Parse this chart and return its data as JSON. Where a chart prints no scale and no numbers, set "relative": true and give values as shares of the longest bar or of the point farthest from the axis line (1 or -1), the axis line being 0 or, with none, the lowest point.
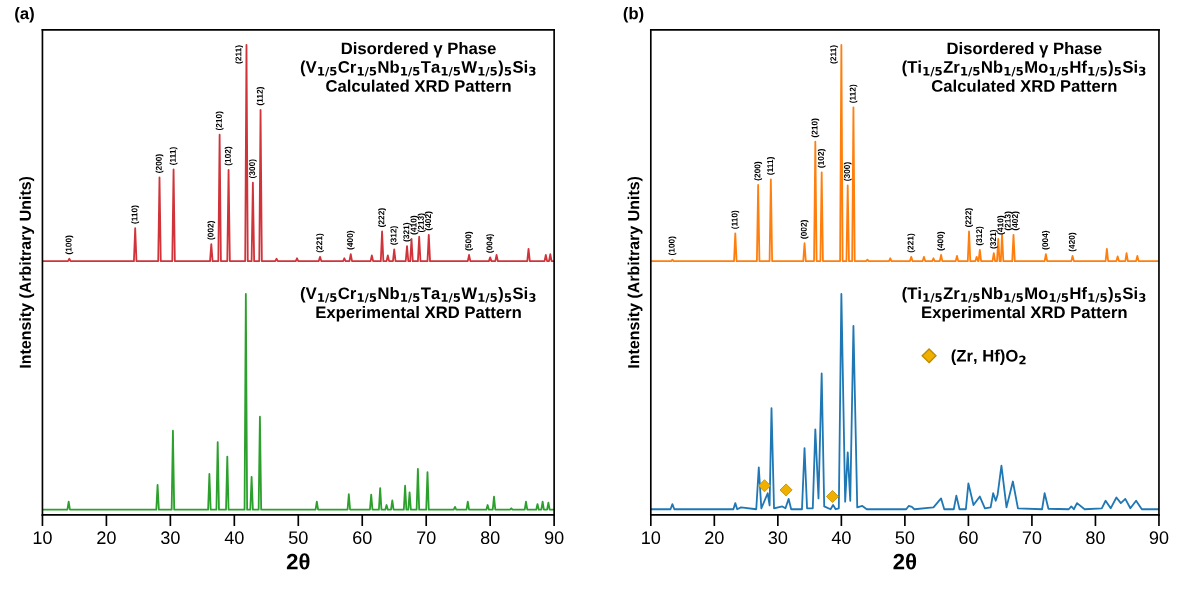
{
  "chart_data": [
    {
      "type": "line",
      "title": "(a)",
      "xlabel": "2θ",
      "ylabel": "Intensity (Arbitrary Units)",
      "relative": true,
      "xlim": [
        10,
        90
      ],
      "xticks": [
        10,
        20,
        30,
        40,
        50,
        60,
        70,
        80,
        90
      ],
      "tick_labels": "x",
      "grid": false,
      "legend": false,
      "series": [
        {
          "color": "#d0343a",
          "x": [
            10,
            14.0,
            14.2,
            14.4,
            24.3,
            24.5,
            24.7,
            28.1,
            28.3,
            28.5,
            30.3,
            30.5,
            30.7,
            36.2,
            36.4,
            36.6,
            37.5,
            37.7,
            37.9,
            38.9,
            39.1,
            39.3,
            41.7,
            41.9,
            42.1,
            42.7,
            42.9,
            43.1,
            43.9,
            44.1,
            44.3,
            46.4,
            46.6,
            46.8,
            49.6,
            49.8,
            50.0,
            53.2,
            53.4,
            53.6,
            57.0,
            57.2,
            57.4,
            58.0,
            58.2,
            58.4,
            61.3,
            61.5,
            61.7,
            62.9,
            63.1,
            63.3,
            63.8,
            64.0,
            64.2,
            64.8,
            65.0,
            65.2,
            66.8,
            67.0,
            67.2,
            67.5,
            67.7,
            67.9,
            68.7,
            68.9,
            69.1,
            70.2,
            70.4,
            70.6,
            76.5,
            76.7,
            76.9,
            79.8,
            80.0,
            80.2,
            80.8,
            81.0,
            81.2,
            85.8,
            86.0,
            86.2,
            88.5,
            88.7,
            88.9,
            89.2,
            89.4,
            89.6,
            90
          ],
          "values": [
            0.54,
            0.54,
            0.545,
            0.54,
            0.54,
            0.61,
            0.54,
            0.54,
            0.718,
            0.54,
            0.54,
            0.735,
            0.54,
            0.54,
            0.576,
            0.54,
            0.54,
            0.809,
            0.54,
            0.54,
            0.734,
            0.54,
            0.54,
            1.0,
            0.54,
            0.54,
            0.707,
            0.54,
            0.54,
            0.862,
            0.54,
            0.54,
            0.545,
            0.54,
            0.54,
            0.546,
            0.54,
            0.54,
            0.549,
            0.54,
            0.54,
            0.546,
            0.54,
            0.54,
            0.555,
            0.54,
            0.54,
            0.552,
            0.54,
            0.54,
            0.603,
            0.54,
            0.54,
            0.552,
            0.54,
            0.54,
            0.565,
            0.54,
            0.54,
            0.572,
            0.54,
            0.54,
            0.587,
            0.54,
            0.54,
            0.592,
            0.54,
            0.54,
            0.596,
            0.54,
            0.54,
            0.553,
            0.54,
            0.54,
            0.548,
            0.54,
            0.54,
            0.553,
            0.54,
            0.54,
            0.566,
            0.54,
            0.54,
            0.553,
            0.54,
            0.54,
            0.555,
            0.54,
            0.54
          ]
        },
        {
          "color": "#2ca02c",
          "x": [
            10,
            13.9,
            14.1,
            14.3,
            27.8,
            28.0,
            28.2,
            30.2,
            30.4,
            30.6,
            35.9,
            36.1,
            36.3,
            37.2,
            37.4,
            37.6,
            38.7,
            38.9,
            39.1,
            41.6,
            41.8,
            42.0,
            42.5,
            42.7,
            42.9,
            43.8,
            44.0,
            44.2,
            52.7,
            52.9,
            53.1,
            57.7,
            57.9,
            58.1,
            61.2,
            61.4,
            61.6,
            62.6,
            62.8,
            63.0,
            63.6,
            63.8,
            64.0,
            64.5,
            64.7,
            64.9,
            66.5,
            66.7,
            66.9,
            67.2,
            67.4,
            67.6,
            68.5,
            68.7,
            68.9,
            70.0,
            70.2,
            70.4,
            74.3,
            74.5,
            74.7,
            76.3,
            76.5,
            76.7,
            79.4,
            79.6,
            79.8,
            80.4,
            80.6,
            80.8,
            83.1,
            83.3,
            83.5,
            85.4,
            85.6,
            85.8,
            87.2,
            87.4,
            87.6,
            88.0,
            88.2,
            88.4,
            88.9,
            89.1,
            89.3,
            90
          ],
          "values": [
            0.011,
            0.011,
            0.028,
            0.011,
            0.011,
            0.064,
            0.011,
            0.011,
            0.179,
            0.011,
            0.011,
            0.087,
            0.011,
            0.011,
            0.155,
            0.011,
            0.011,
            0.124,
            0.011,
            0.011,
            0.47,
            0.011,
            0.011,
            0.081,
            0.011,
            0.011,
            0.209,
            0.011,
            0.011,
            0.028,
            0.011,
            0.011,
            0.044,
            0.011,
            0.011,
            0.043,
            0.011,
            0.011,
            0.057,
            0.011,
            0.011,
            0.021,
            0.011,
            0.011,
            0.031,
            0.011,
            0.011,
            0.062,
            0.011,
            0.011,
            0.048,
            0.011,
            0.011,
            0.098,
            0.011,
            0.011,
            0.091,
            0.011,
            0.011,
            0.017,
            0.011,
            0.011,
            0.028,
            0.011,
            0.011,
            0.021,
            0.011,
            0.011,
            0.039,
            0.011,
            0.011,
            0.014,
            0.011,
            0.011,
            0.028,
            0.011,
            0.011,
            0.023,
            0.011,
            0.011,
            0.028,
            0.011,
            0.011,
            0.026,
            0.011,
            0.011
          ]
        }
      ],
      "annotations": [
        "Disordered γ Phase\n(V$_{1/5}$Cr$_{1/5}$Nb$_{1/5}$Ta$_{1/5}$W$_{1/5}$)$_{5}$Si$_{3}$\nCalculated XRD Pattern",
        "(V$_{1/5}$Cr$_{1/5}$Nb$_{1/5}$Ta$_{1/5}$W$_{1/5}$)$_{5}$Si$_{3}$\nExperimental XRD Pattern",
        {
          "text": "(100)",
          "x": 14.2,
          "y": 0.545
        },
        {
          "text": "(110)",
          "x": 24.5,
          "y": 0.61
        },
        {
          "text": "(200)",
          "x": 28.3,
          "y": 0.718
        },
        {
          "text": "(111)",
          "x": 30.5,
          "y": 0.735
        },
        {
          "text": "(002)",
          "x": 36.4,
          "y": 0.576
        },
        {
          "text": "(210)",
          "x": 37.7,
          "y": 0.809
        },
        {
          "text": "(102)",
          "x": 39.1,
          "y": 0.734
        },
        {
          "text": "(211)",
          "x": 41.9,
          "y": 1.0
        },
        {
          "text": "(300)",
          "x": 42.9,
          "y": 0.707
        },
        {
          "text": "(112)",
          "x": 44.1,
          "y": 0.862
        },
        {
          "text": "(221)",
          "x": 53.4,
          "y": 0.549
        },
        {
          "text": "(400)",
          "x": 58.2,
          "y": 0.555
        },
        {
          "text": "(222)",
          "x": 63.1,
          "y": 0.603
        },
        {
          "text": "(312)",
          "x": 65.0,
          "y": 0.565
        },
        {
          "text": "(321)",
          "x": 67.0,
          "y": 0.572
        },
        {
          "text": "(410)",
          "x": 67.7,
          "y": 0.587
        },
        {
          "text": "(213)",
          "x": 68.9,
          "y": 0.592
        },
        {
          "text": "(402)",
          "x": 70.4,
          "y": 0.596
        },
        {
          "text": "(500)",
          "x": 76.7,
          "y": 0.553
        },
        {
          "text": "(004)",
          "x": 80.0,
          "y": 0.548
        }
      ]
    },
    {
      "type": "line",
      "title": "(b)",
      "xlabel": "2θ",
      "ylabel": "Intensity (Arbitrary Units)",
      "relative": true,
      "xlim": [
        10,
        90
      ],
      "xticks": [
        10,
        20,
        30,
        40,
        50,
        60,
        70,
        80,
        90
      ],
      "tick_labels": "x",
      "grid": false,
      "legend": "right",
      "series": [
        {
          "color": "#ff7f0e",
          "x": [
            10,
            13.2,
            13.4,
            13.6,
            23.1,
            23.3,
            23.5,
            26.7,
            26.9,
            27.1,
            28.7,
            28.9,
            29.1,
            34.0,
            34.2,
            34.4,
            35.7,
            35.9,
            36.1,
            36.7,
            36.9,
            37.1,
            39.8,
            40.0,
            40.2,
            40.8,
            41.0,
            41.2,
            41.7,
            41.9,
            42.1,
            43.9,
            44.1,
            44.3,
            47.5,
            47.7,
            47.9,
            50.8,
            51.0,
            51.2,
            52.8,
            53.0,
            53.2,
            54.3,
            54.5,
            54.7,
            55.5,
            55.7,
            55.9,
            58.0,
            58.2,
            58.4,
            59.9,
            60.1,
            60.3,
            61.1,
            61.3,
            61.5,
            61.6,
            61.8,
            62.0,
            63.8,
            64.0,
            64.2,
            64.5,
            64.7,
            64.9,
            65.1,
            65.3,
            65.5,
            66.9,
            67.1,
            67.3,
            72.0,
            72.2,
            72.4,
            76.2,
            76.4,
            76.6,
            81.6,
            81.8,
            82.0,
            83.3,
            83.5,
            83.7,
            84.7,
            84.9,
            85.1,
            86.4,
            86.6,
            86.8,
            90
          ],
          "values": [
            0.54,
            0.54,
            0.543,
            0.54,
            0.54,
            0.599,
            0.54,
            0.54,
            0.702,
            0.54,
            0.54,
            0.714,
            0.54,
            0.54,
            0.578,
            0.54,
            0.54,
            0.794,
            0.54,
            0.54,
            0.729,
            0.54,
            0.54,
            1.0,
            0.54,
            0.54,
            0.701,
            0.54,
            0.54,
            0.867,
            0.54,
            0.54,
            0.543,
            0.54,
            0.54,
            0.546,
            0.54,
            0.54,
            0.549,
            0.54,
            0.54,
            0.549,
            0.54,
            0.54,
            0.546,
            0.54,
            0.54,
            0.553,
            0.54,
            0.54,
            0.551,
            0.54,
            0.54,
            0.603,
            0.54,
            0.54,
            0.549,
            0.54,
            0.54,
            0.564,
            0.54,
            0.54,
            0.557,
            0.54,
            0.54,
            0.587,
            0.54,
            0.54,
            0.596,
            0.54,
            0.54,
            0.596,
            0.54,
            0.54,
            0.555,
            0.54,
            0.54,
            0.551,
            0.54,
            0.54,
            0.566,
            0.54,
            0.54,
            0.55,
            0.54,
            0.54,
            0.557,
            0.54,
            0.54,
            0.551,
            0.54,
            0.54
          ]
        },
        {
          "color": "#1f77b4",
          "x": [
            10,
            13.1,
            13.4,
            13.7,
            23.0,
            23.3,
            23.6,
            24.2,
            26.6,
            27.0,
            27.4,
            28.4,
            28.7,
            29.0,
            29.4,
            30.7,
            31.2,
            31.7,
            32.1,
            33.8,
            34.2,
            34.6,
            35.5,
            35.9,
            36.4,
            36.9,
            37.3,
            38.3,
            38.7,
            39.1,
            39.6,
            40.0,
            40.6,
            41.0,
            41.4,
            41.9,
            42.5,
            43.3,
            44.0,
            50.2,
            50.6,
            51.1,
            51.5,
            54.5,
            55.7,
            56.2,
            57.7,
            58.1,
            58.6,
            59.6,
            60.0,
            60.8,
            61.8,
            62.6,
            63.5,
            63.9,
            64.3,
            64.6,
            65.2,
            66.0,
            67.0,
            67.8,
            71.6,
            72.0,
            72.6,
            75.8,
            76.2,
            76.6,
            77.1,
            78.3,
            81.0,
            81.6,
            82.4,
            83.3,
            84.0,
            84.7,
            85.5,
            86.4,
            87.3,
            90
          ],
          "values": [
            0.012,
            0.012,
            0.023,
            0.012,
            0.012,
            0.025,
            0.012,
            0.016,
            0.012,
            0.101,
            0.014,
            0.046,
            0.02,
            0.227,
            0.014,
            0.018,
            0.014,
            0.034,
            0.012,
            0.012,
            0.142,
            0.014,
            0.014,
            0.182,
            0.035,
            0.301,
            0.018,
            0.012,
            0.021,
            0.012,
            0.014,
            0.47,
            0.028,
            0.133,
            0.03,
            0.402,
            0.016,
            0.019,
            0.012,
            0.012,
            0.019,
            0.017,
            0.012,
            0.016,
            0.035,
            0.012,
            0.012,
            0.041,
            0.012,
            0.012,
            0.067,
            0.021,
            0.039,
            0.014,
            0.016,
            0.046,
            0.03,
            0.043,
            0.105,
            0.016,
            0.071,
            0.014,
            0.012,
            0.046,
            0.013,
            0.012,
            0.018,
            0.012,
            0.025,
            0.012,
            0.014,
            0.03,
            0.014,
            0.037,
            0.025,
            0.034,
            0.014,
            0.03,
            0.012,
            0.012
          ]
        },
        {
          "type": "scatter",
          "name": "(Zr, Hf)O$_{2}$",
          "color": "#f0b000",
          "marker": "diamond",
          "x": [
            27.9,
            31.3,
            38.6
          ],
          "values": [
            0.062,
            0.053,
            0.039
          ]
        }
      ],
      "annotations": [
        "Disordered γ Phase\n(Ti$_{1/5}$Zr$_{1/5}$Nb$_{1/5}$Mo$_{1/5}$Hf$_{1/5}$)$_{5}$Si$_{3}$\nCalculated XRD Pattern",
        "(Ti$_{1/5}$Zr$_{1/5}$Nb$_{1/5}$Mo$_{1/5}$Hf$_{1/5}$)$_{5}$Si$_{3}$\nExperimental XRD Pattern",
        {
          "text": "(100)",
          "x": 13.4,
          "y": 0.543
        },
        {
          "text": "(110)",
          "x": 23.3,
          "y": 0.599
        },
        {
          "text": "(200)",
          "x": 26.9,
          "y": 0.702
        },
        {
          "text": "(111)",
          "x": 28.9,
          "y": 0.714
        },
        {
          "text": "(002)",
          "x": 34.2,
          "y": 0.578
        },
        {
          "text": "(210)",
          "x": 35.9,
          "y": 0.794
        },
        {
          "text": "(102)",
          "x": 36.9,
          "y": 0.729
        },
        {
          "text": "(211)",
          "x": 40.0,
          "y": 1.0
        },
        {
          "text": "(300)",
          "x": 41.0,
          "y": 0.701
        },
        {
          "text": "(112)",
          "x": 41.9,
          "y": 0.867
        },
        {
          "text": "(221)",
          "x": 51.0,
          "y": 0.549
        },
        {
          "text": "(400)",
          "x": 55.7,
          "y": 0.553
        },
        {
          "text": "(222)",
          "x": 60.1,
          "y": 0.603
        },
        {
          "text": "(312)",
          "x": 61.8,
          "y": 0.564
        },
        {
          "text": "(321)",
          "x": 64.0,
          "y": 0.557
        },
        {
          "text": "(410)",
          "x": 64.7,
          "y": 0.587
        },
        {
          "text": "(213)",
          "x": 65.3,
          "y": 0.596
        },
        {
          "text": "(402)",
          "x": 67.1,
          "y": 0.596
        },
        {
          "text": "(004)",
          "x": 72.2,
          "y": 0.555
        },
        {
          "text": "(420)",
          "x": 76.4,
          "y": 0.551
        }
      ]
    }
  ]
}
